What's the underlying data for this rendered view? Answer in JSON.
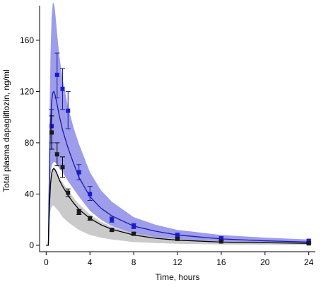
{
  "chart_data": {
    "type": "line",
    "title": "",
    "xlabel": "Time, hours",
    "ylabel": "Total plasma dapagliflozin, ng/ml",
    "xlim": [
      -0.6,
      24.6
    ],
    "ylim": [
      -5,
      187
    ],
    "xticks": [
      0,
      4,
      8,
      12,
      16,
      20,
      24
    ],
    "yticks": [
      0,
      40,
      80,
      120,
      160
    ],
    "grid": false,
    "legend": "none",
    "series": [
      {
        "color": "#1a1aa6",
        "band_color": "#8c8ce8",
        "marker_color": "#1a1ad0",
        "curve": {
          "x": [
            0,
            0.2,
            0.3,
            0.4,
            0.5,
            0.6,
            0.7,
            0.8,
            0.9,
            1.0,
            1.2,
            1.5,
            2,
            2.5,
            3,
            4,
            5,
            6,
            8,
            10,
            12,
            16,
            20,
            24
          ],
          "y": [
            0,
            0,
            60,
            95,
            112,
            119,
            120,
            118,
            114,
            110,
            101,
            90,
            76,
            64,
            53,
            38,
            29,
            23,
            15,
            11,
            8,
            5,
            3.5,
            2.5
          ]
        },
        "band": {
          "x": [
            0,
            0.2,
            0.3,
            0.4,
            0.5,
            0.6,
            0.7,
            0.8,
            0.9,
            1.0,
            1.2,
            1.5,
            2,
            2.5,
            3,
            4,
            5,
            6,
            8,
            10,
            12,
            16,
            20,
            24
          ],
          "lower": [
            0,
            0,
            40,
            55,
            62,
            64,
            65,
            65,
            64,
            63,
            60,
            57,
            50,
            44,
            38,
            27,
            20,
            15,
            9,
            6,
            4,
            2.5,
            1.5,
            1
          ],
          "upper": [
            0,
            0,
            95,
            150,
            178,
            189,
            189,
            184,
            175,
            165,
            148,
            130,
            108,
            92,
            79,
            57,
            43,
            34,
            22,
            16,
            12,
            8,
            6,
            4.5
          ]
        },
        "points": [
          {
            "x": 0.5,
            "y": 93,
            "low": 80,
            "high": 106
          },
          {
            "x": 1,
            "y": 133,
            "low": 115,
            "high": 150
          },
          {
            "x": 1.5,
            "y": 122,
            "low": 106,
            "high": 138
          },
          {
            "x": 2,
            "y": 105,
            "low": 91,
            "high": 120
          },
          {
            "x": 3,
            "y": 57,
            "low": 51,
            "high": 63
          },
          {
            "x": 4,
            "y": 40,
            "low": 35,
            "high": 46
          },
          {
            "x": 6,
            "y": 20,
            "low": 18,
            "high": 22
          },
          {
            "x": 8,
            "y": 15,
            "low": 13,
            "high": 17
          },
          {
            "x": 12,
            "y": 8,
            "low": 6.5,
            "high": 9.5
          },
          {
            "x": 16,
            "y": 5.5,
            "low": 4.5,
            "high": 6.5
          },
          {
            "x": 24,
            "y": 3.5,
            "low": 2.8,
            "high": 4.2
          }
        ]
      },
      {
        "color": "#000000",
        "band_color": "#c4c4c4",
        "marker_color": "#1a1a1a",
        "curve": {
          "x": [
            0,
            0.2,
            0.3,
            0.4,
            0.5,
            0.6,
            0.7,
            0.8,
            0.9,
            1.0,
            1.2,
            1.5,
            2,
            2.5,
            3,
            4,
            5,
            6,
            8,
            10,
            12,
            16,
            20,
            24
          ],
          "y": [
            0,
            0,
            30,
            48,
            56,
            59,
            60,
            59,
            57.5,
            55.5,
            51,
            46,
            39,
            33,
            28,
            21,
            16,
            12.5,
            8,
            5.5,
            4,
            2.5,
            2,
            1.5
          ]
        },
        "band": {
          "x": [
            0,
            0.2,
            0.3,
            0.4,
            0.5,
            0.6,
            0.7,
            0.8,
            0.9,
            1.0,
            1.2,
            1.5,
            2,
            2.5,
            3,
            4,
            5,
            6,
            8,
            10,
            12,
            16,
            20,
            24
          ],
          "lower": [
            0,
            0,
            20,
            28,
            30,
            31,
            31,
            30,
            29,
            28,
            26,
            22,
            18,
            15,
            12,
            8,
            6,
            4.5,
            2.5,
            1.8,
            1.2,
            0.7,
            0.5,
            0.3
          ],
          "upper": [
            0,
            0,
            36,
            52,
            58,
            60,
            61,
            60,
            59,
            57,
            53,
            49,
            43,
            37,
            32,
            24,
            18.5,
            14.5,
            9.5,
            6.5,
            5,
            3,
            2.5,
            2
          ]
        },
        "points": [
          {
            "x": 0.5,
            "y": 88,
            "low": 75,
            "high": 101
          },
          {
            "x": 1,
            "y": 71,
            "low": 62,
            "high": 80
          },
          {
            "x": 1.5,
            "y": 61,
            "low": 53,
            "high": 69
          },
          {
            "x": 2,
            "y": 41,
            "low": 38,
            "high": 44
          },
          {
            "x": 3,
            "y": 26,
            "low": 24,
            "high": 28
          },
          {
            "x": 4,
            "y": 21,
            "low": 19.5,
            "high": 22.5
          },
          {
            "x": 6,
            "y": 12,
            "low": 11,
            "high": 13
          },
          {
            "x": 8,
            "y": 9,
            "low": 8,
            "high": 10
          },
          {
            "x": 12,
            "y": 5,
            "low": 4.3,
            "high": 5.7
          },
          {
            "x": 16,
            "y": 3,
            "low": 2.5,
            "high": 3.5
          },
          {
            "x": 24,
            "y": 1.5,
            "low": 1.1,
            "high": 1.9
          }
        ]
      }
    ]
  }
}
